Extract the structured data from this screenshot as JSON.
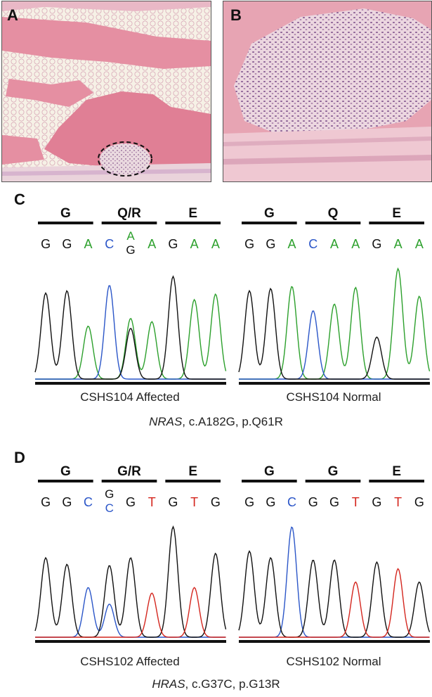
{
  "colors": {
    "A": "#2ca02c",
    "C": "#2b56c8",
    "G": "#111111",
    "T": "#d4261e"
  },
  "panel_letters": {
    "a": "A",
    "b": "B",
    "c": "C",
    "d": "D"
  },
  "panel_c": {
    "caption_gene": "NRAS",
    "caption_rest": ", c.A182G, p.Q61R",
    "left": {
      "label": "CSHS104 Affected",
      "codons": [
        "G",
        "Q/R",
        "E"
      ],
      "bases": [
        {
          "t": "G",
          "c": "G"
        },
        {
          "t": "G",
          "c": "G"
        },
        {
          "t": "A",
          "c": "A"
        },
        {
          "t": "C",
          "c": "C"
        },
        {
          "t": "A",
          "c": "A",
          "t2": "G",
          "c2": "G"
        },
        {
          "t": "A",
          "c": "A"
        },
        {
          "t": "G",
          "c": "G"
        },
        {
          "t": "A",
          "c": "A"
        },
        {
          "t": "A",
          "c": "A"
        }
      ]
    },
    "right": {
      "label": "CSHS104 Normal",
      "codons": [
        "G",
        "Q",
        "E"
      ],
      "bases": [
        {
          "t": "G",
          "c": "G"
        },
        {
          "t": "G",
          "c": "G"
        },
        {
          "t": "A",
          "c": "A"
        },
        {
          "t": "C",
          "c": "C"
        },
        {
          "t": "A",
          "c": "A"
        },
        {
          "t": "A",
          "c": "A"
        },
        {
          "t": "G",
          "c": "G"
        },
        {
          "t": "A",
          "c": "A"
        },
        {
          "t": "A",
          "c": "A"
        }
      ]
    }
  },
  "panel_d": {
    "caption_gene": "HRAS",
    "caption_rest": ", c.G37C, p.G13R",
    "left": {
      "label": "CSHS102 Affected",
      "codons": [
        "G",
        "G/R",
        "E"
      ],
      "bases": [
        {
          "t": "G",
          "c": "G"
        },
        {
          "t": "G",
          "c": "G"
        },
        {
          "t": "C",
          "c": "C"
        },
        {
          "t": "G",
          "c": "G",
          "t2": "C",
          "c2": "C"
        },
        {
          "t": "G",
          "c": "G"
        },
        {
          "t": "T",
          "c": "T"
        },
        {
          "t": "G",
          "c": "G"
        },
        {
          "t": "T",
          "c": "T"
        },
        {
          "t": "G",
          "c": "G"
        }
      ]
    },
    "right": {
      "label": "CSHS102 Normal",
      "codons": [
        "G",
        "G",
        "E"
      ],
      "bases": [
        {
          "t": "G",
          "c": "G"
        },
        {
          "t": "G",
          "c": "G"
        },
        {
          "t": "C",
          "c": "C"
        },
        {
          "t": "G",
          "c": "G"
        },
        {
          "t": "G",
          "c": "G"
        },
        {
          "t": "T",
          "c": "T"
        },
        {
          "t": "G",
          "c": "G"
        },
        {
          "t": "T",
          "c": "T"
        },
        {
          "t": "G",
          "c": "G"
        }
      ]
    }
  }
}
